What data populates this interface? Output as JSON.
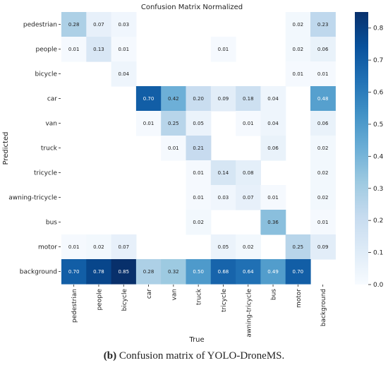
{
  "chart_data": {
    "type": "heatmap",
    "title": "Confusion Matrix Normalized",
    "xlabel": "True",
    "ylabel": "Predicted",
    "x_categories": [
      "pedestrian",
      "people",
      "bicycle",
      "car",
      "van",
      "truck",
      "tricycle",
      "awning-tricycle",
      "bus",
      "motor",
      "background"
    ],
    "y_categories": [
      "pedestrian",
      "people",
      "bicycle",
      "car",
      "van",
      "truck",
      "tricycle",
      "awning-tricycle",
      "bus",
      "motor",
      "background"
    ],
    "values": [
      [
        0.28,
        0.07,
        0.03,
        null,
        null,
        null,
        null,
        null,
        null,
        0.02,
        0.23
      ],
      [
        0.01,
        0.13,
        0.01,
        null,
        null,
        null,
        0.01,
        null,
        null,
        0.02,
        0.06
      ],
      [
        null,
        null,
        0.04,
        null,
        null,
        null,
        null,
        null,
        null,
        0.01,
        0.01
      ],
      [
        null,
        null,
        null,
        0.7,
        0.42,
        0.2,
        0.09,
        0.18,
        0.04,
        null,
        0.48
      ],
      [
        null,
        null,
        null,
        0.01,
        0.25,
        0.05,
        null,
        0.01,
        0.04,
        null,
        0.06
      ],
      [
        null,
        null,
        null,
        null,
        0.01,
        0.21,
        null,
        null,
        0.06,
        null,
        0.02
      ],
      [
        null,
        null,
        null,
        null,
        null,
        0.01,
        0.14,
        0.08,
        null,
        null,
        0.02
      ],
      [
        null,
        null,
        null,
        null,
        null,
        0.01,
        0.03,
        0.07,
        0.01,
        null,
        0.02
      ],
      [
        null,
        null,
        null,
        null,
        null,
        0.02,
        null,
        null,
        0.36,
        null,
        0.01
      ],
      [
        0.01,
        0.02,
        0.07,
        null,
        null,
        null,
        0.05,
        0.02,
        null,
        0.25,
        0.09
      ],
      [
        0.7,
        0.78,
        0.85,
        0.28,
        0.32,
        0.5,
        0.68,
        0.64,
        0.49,
        0.7,
        null
      ]
    ],
    "colorbar": {
      "min": 0.0,
      "max": 0.85,
      "ticks": [
        0.0,
        0.1,
        0.2,
        0.3,
        0.4,
        0.5,
        0.6,
        0.7,
        0.8
      ],
      "tick_labels": [
        "0.0",
        "0.1",
        "0.2",
        "0.3",
        "0.4",
        "0.5",
        "0.6",
        "0.7",
        "0.8"
      ],
      "colormap": "Blues"
    }
  },
  "caption": {
    "label": "(b)",
    "text": " Confusion matrix of YOLO-DroneMS."
  }
}
